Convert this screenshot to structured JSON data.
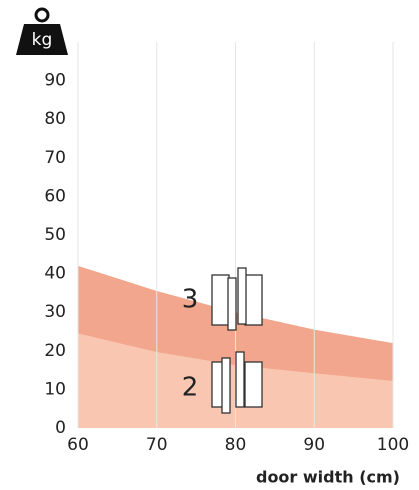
{
  "chart_data": {
    "type": "area",
    "y_label": "kg",
    "x_label": "door width (cm)",
    "x": [
      60,
      70,
      80,
      90,
      100
    ],
    "series": [
      {
        "name": "3",
        "color": "#f2a68d",
        "values": [
          42,
          35.5,
          30,
          25.5,
          22
        ]
      },
      {
        "name": "2",
        "color": "#f9c6b2",
        "values": [
          24.5,
          19.7,
          16.3,
          14.2,
          12.2
        ]
      }
    ],
    "xlim": [
      60,
      100
    ],
    "xticks": [
      60,
      70,
      80,
      90,
      100
    ],
    "ylim": [
      0,
      100
    ],
    "yticks": [
      0,
      10,
      20,
      30,
      40,
      50,
      60,
      70,
      80,
      90
    ],
    "grid": true
  }
}
